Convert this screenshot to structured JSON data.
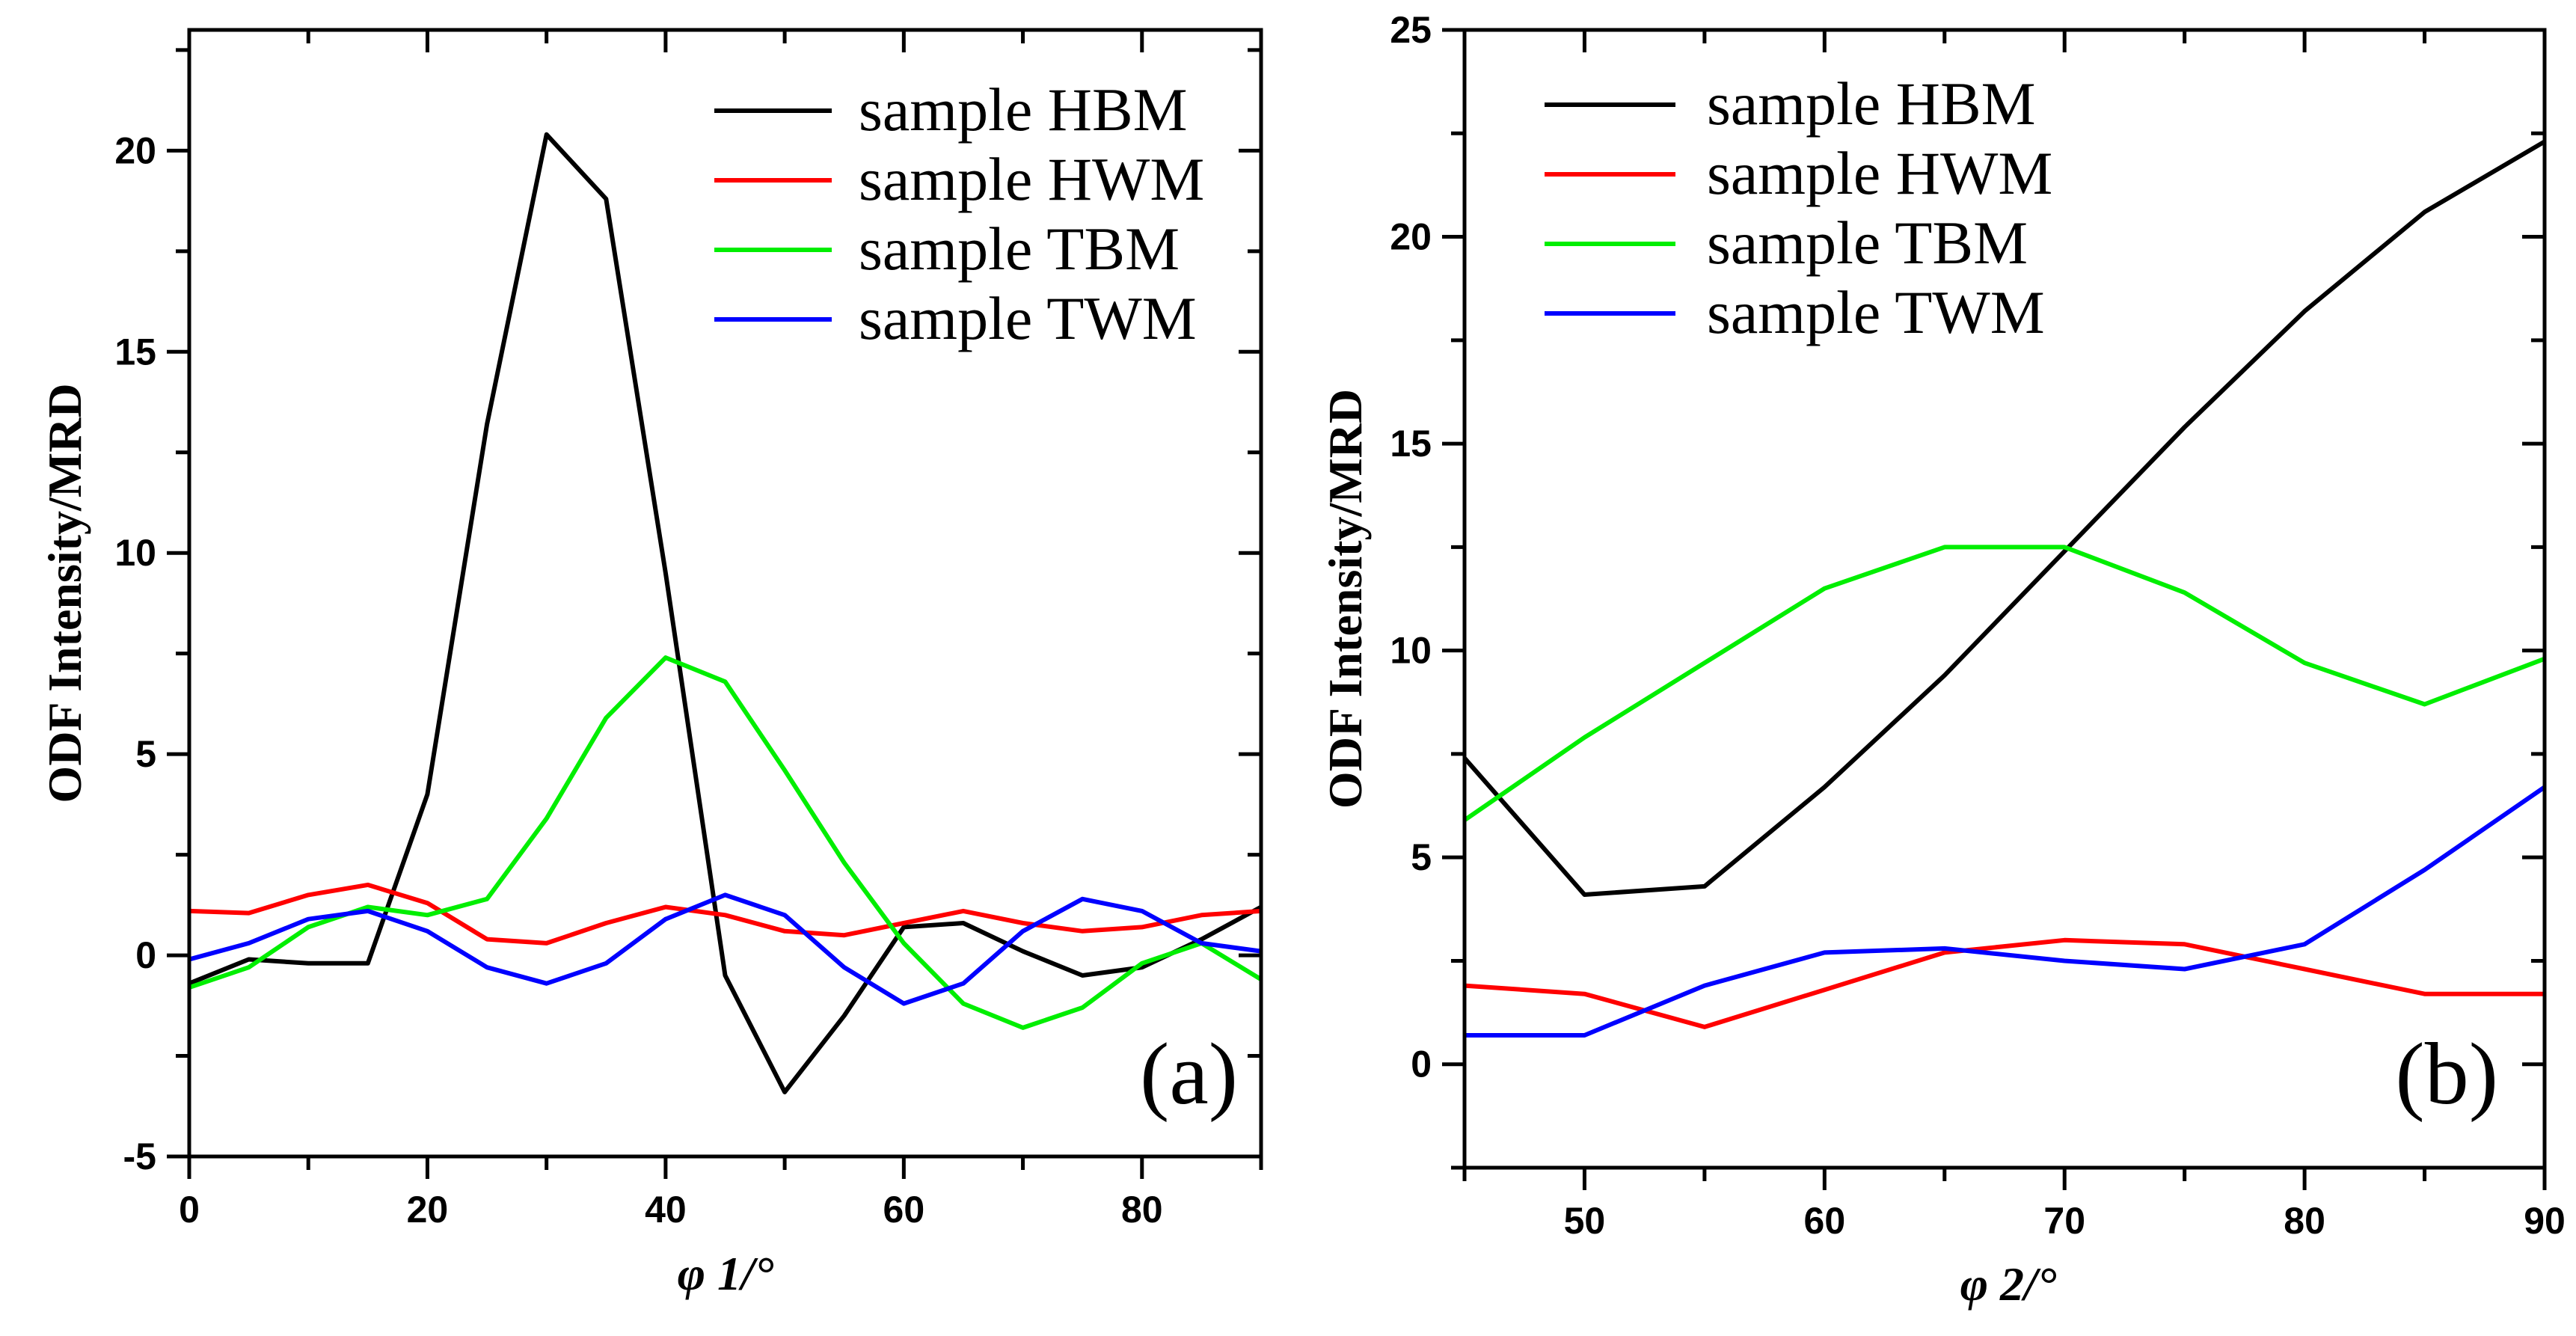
{
  "chart_data": [
    {
      "type": "line",
      "panel_label": "(a)",
      "xlabel": "φ 1/°",
      "ylabel": "ODF Intensity/MRD",
      "xlim": [
        0,
        90
      ],
      "ylim": [
        -5,
        23
      ],
      "xticks": [
        0,
        20,
        40,
        60,
        80
      ],
      "yticks": [
        -5,
        0,
        5,
        10,
        15,
        20
      ],
      "legend_position": "top-right",
      "x": [
        0,
        5,
        10,
        15,
        20,
        25,
        30,
        35,
        40,
        45,
        50,
        55,
        60,
        65,
        70,
        75,
        80,
        85,
        90
      ],
      "series": [
        {
          "name": "sample HBM",
          "color": "#000000",
          "values": [
            -0.7,
            -0.1,
            -0.2,
            -0.2,
            4.0,
            13.2,
            20.4,
            18.8,
            9.5,
            -0.5,
            -3.4,
            -1.5,
            0.7,
            0.8,
            0.1,
            -0.5,
            -0.3,
            0.4,
            1.2
          ]
        },
        {
          "name": "sample HWM",
          "color": "#ff0000",
          "values": [
            1.1,
            1.05,
            1.5,
            1.75,
            1.3,
            0.4,
            0.3,
            0.8,
            1.2,
            1.0,
            0.6,
            0.5,
            0.8,
            1.1,
            0.8,
            0.6,
            0.7,
            1.0,
            1.1
          ]
        },
        {
          "name": "sample TBM",
          "color": "#00ee00",
          "values": [
            -0.8,
            -0.3,
            0.7,
            1.2,
            1.0,
            1.4,
            3.4,
            5.9,
            7.4,
            6.8,
            4.6,
            2.3,
            0.3,
            -1.2,
            -1.8,
            -1.3,
            -0.2,
            0.3,
            -0.6
          ]
        },
        {
          "name": "sample TWM",
          "color": "#0000ff",
          "values": [
            -0.1,
            0.3,
            0.9,
            1.1,
            0.6,
            -0.3,
            -0.7,
            -0.2,
            0.9,
            1.5,
            1.0,
            -0.3,
            -1.2,
            -0.7,
            0.6,
            1.4,
            1.1,
            0.3,
            0.1
          ]
        }
      ]
    },
    {
      "type": "line",
      "panel_label": "(b)",
      "xlabel": "φ 2/°",
      "ylabel": "ODF Intensity/MRD",
      "xlim": [
        45,
        90
      ],
      "ylim": [
        -2.5,
        25
      ],
      "xticks": [
        50,
        60,
        70,
        80,
        90
      ],
      "yticks": [
        0,
        5,
        10,
        15,
        20,
        25
      ],
      "legend_position": "top-left",
      "x": [
        45,
        50,
        55,
        60,
        65,
        70,
        75,
        80,
        85,
        90
      ],
      "series": [
        {
          "name": "sample HBM",
          "color": "#000000",
          "values": [
            7.4,
            4.1,
            4.3,
            6.7,
            9.4,
            12.4,
            15.4,
            18.2,
            20.6,
            22.3
          ]
        },
        {
          "name": "sample HWM",
          "color": "#ff0000",
          "values": [
            1.9,
            1.7,
            0.9,
            1.8,
            2.7,
            3.0,
            2.9,
            2.3,
            1.7,
            1.7
          ]
        },
        {
          "name": "sample TBM",
          "color": "#00ee00",
          "values": [
            5.9,
            7.9,
            9.7,
            11.5,
            12.5,
            12.5,
            11.4,
            9.7,
            8.7,
            9.8
          ]
        },
        {
          "name": "sample TWM",
          "color": "#0000ff",
          "values": [
            0.7,
            0.7,
            1.9,
            2.7,
            2.8,
            2.5,
            2.3,
            2.9,
            4.7,
            6.7
          ]
        }
      ]
    }
  ]
}
